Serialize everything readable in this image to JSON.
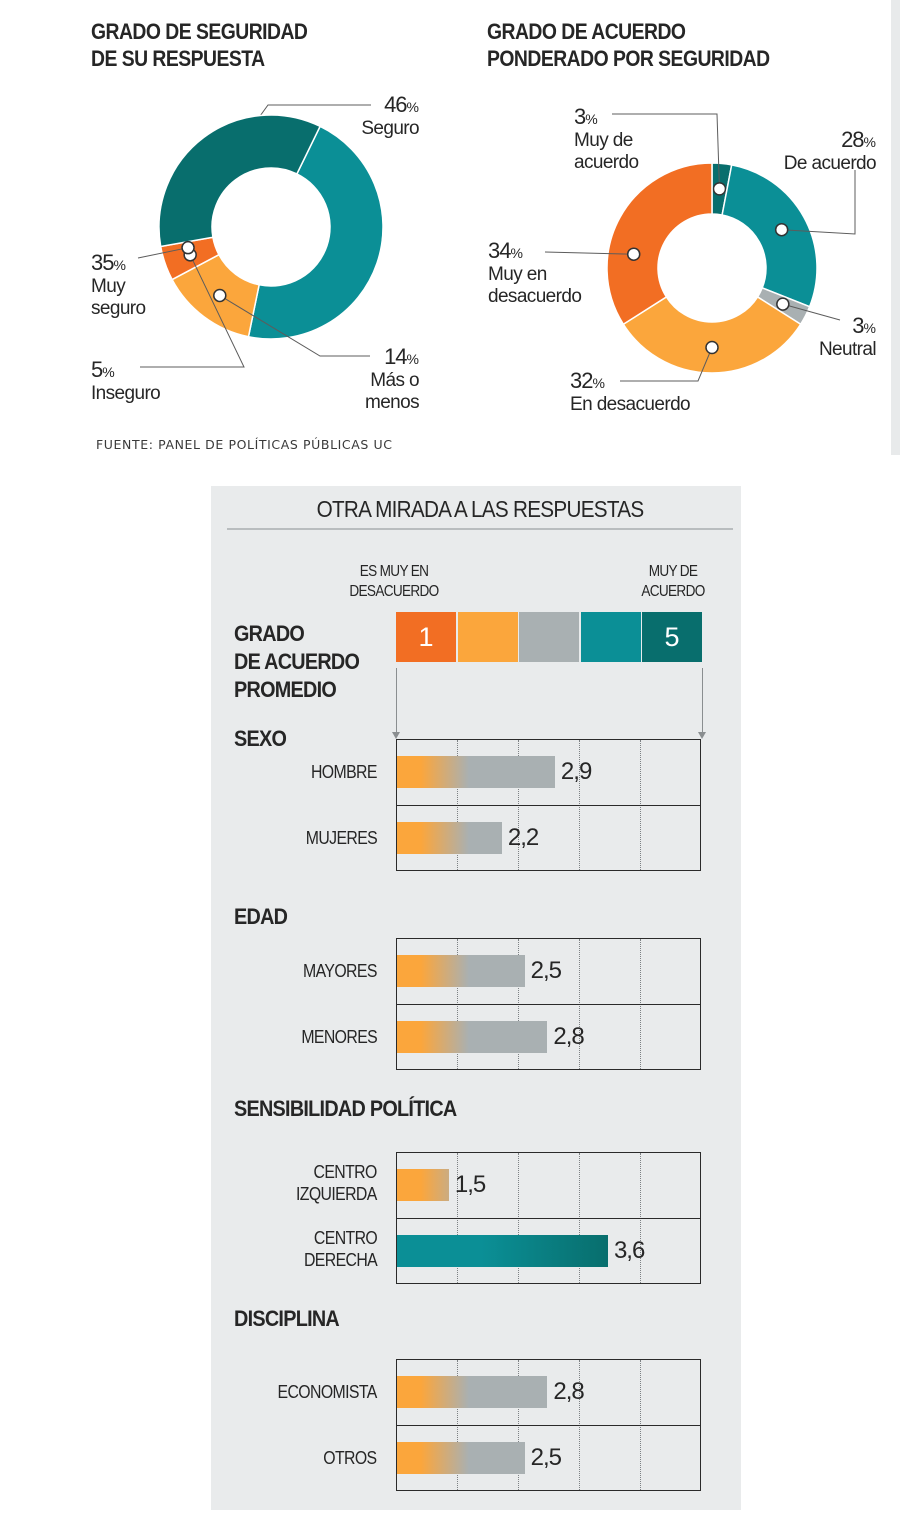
{
  "colors": {
    "teal": "#0b8f96",
    "dark_teal": "#086e6d",
    "orange": "#f26e23",
    "light_orange": "#fba63c",
    "gray": "#a9b0b2",
    "panel_bg": "#e9ebec"
  },
  "chart1": {
    "title_line1": "GRADO DE SEGURIDAD",
    "title_line2": "DE SU RESPUESTA"
  },
  "chart2": {
    "title_line1": "GRADO DE ACUERDO",
    "title_line2": "PONDERADO POR SEGURIDAD"
  },
  "source": "FUENTE: PANEL DE POLÍTICAS PÚBLICAS UC",
  "panel": {
    "title": "OTRA MIRADA A LAS RESPUESTAS",
    "scale_low_line1": "ES MUY EN",
    "scale_low_line2": "DESACUERDO",
    "scale_high_line1": "MUY DE",
    "scale_high_line2": "ACUERDO",
    "scale_min": "1",
    "scale_max": "5",
    "grado_line1": "GRADO",
    "grado_line2": "DE ACUERDO",
    "grado_line3": "PROMEDIO"
  },
  "chart_data": [
    {
      "type": "pie",
      "title": "GRADO DE SEGURIDAD DE SU RESPUESTA",
      "slices": [
        {
          "label": "Seguro",
          "value": 46,
          "pct": "46",
          "color": "#0b8f96"
        },
        {
          "label": "Más o menos",
          "value": 14,
          "pct": "14",
          "color": "#fba63c"
        },
        {
          "label": "Inseguro",
          "value": 5,
          "pct": "5",
          "color": "#f26e23"
        },
        {
          "label": "Muy seguro",
          "value": 35,
          "pct": "35",
          "color": "#086e6d"
        }
      ]
    },
    {
      "type": "pie",
      "title": "GRADO DE ACUERDO PONDERADO POR SEGURIDAD",
      "slices": [
        {
          "label": "Muy de acuerdo",
          "value": 3,
          "pct": "3",
          "color": "#086e6d"
        },
        {
          "label": "De acuerdo",
          "value": 28,
          "pct": "28",
          "color": "#0b8f96"
        },
        {
          "label": "Neutral",
          "value": 3,
          "pct": "3",
          "color": "#a9b0b2"
        },
        {
          "label": "En desacuerdo",
          "value": 32,
          "pct": "32",
          "color": "#fba63c"
        },
        {
          "label": "Muy en desacuerdo",
          "value": 34,
          "pct": "34",
          "color": "#f26e23"
        }
      ]
    },
    {
      "type": "bar",
      "title": "OTRA MIRADA A LAS RESPUESTAS",
      "ylabel": "GRADO DE ACUERDO PROMEDIO",
      "xlim": [
        1,
        5
      ],
      "groups": [
        {
          "name": "SEXO",
          "rows": [
            {
              "label": "HOMBRE",
              "value": 2.9,
              "display": "2,9"
            },
            {
              "label": "MUJERES",
              "value": 2.2,
              "display": "2,2"
            }
          ]
        },
        {
          "name": "EDAD",
          "rows": [
            {
              "label": "MAYORES",
              "value": 2.5,
              "display": "2,5"
            },
            {
              "label": "MENORES",
              "value": 2.8,
              "display": "2,8"
            }
          ]
        },
        {
          "name": "SENSIBILIDAD POLÍTICA",
          "rows": [
            {
              "label": "CENTRO\nIZQUIERDA",
              "value": 1.5,
              "display": "1,5"
            },
            {
              "label": "CENTRO\nDERECHA",
              "value": 3.6,
              "display": "3,6"
            }
          ]
        },
        {
          "name": "DISCIPLINA",
          "rows": [
            {
              "label": "ECONOMISTA",
              "value": 2.8,
              "display": "2,8"
            },
            {
              "label": "OTROS",
              "value": 2.5,
              "display": "2,5"
            }
          ]
        }
      ]
    }
  ]
}
